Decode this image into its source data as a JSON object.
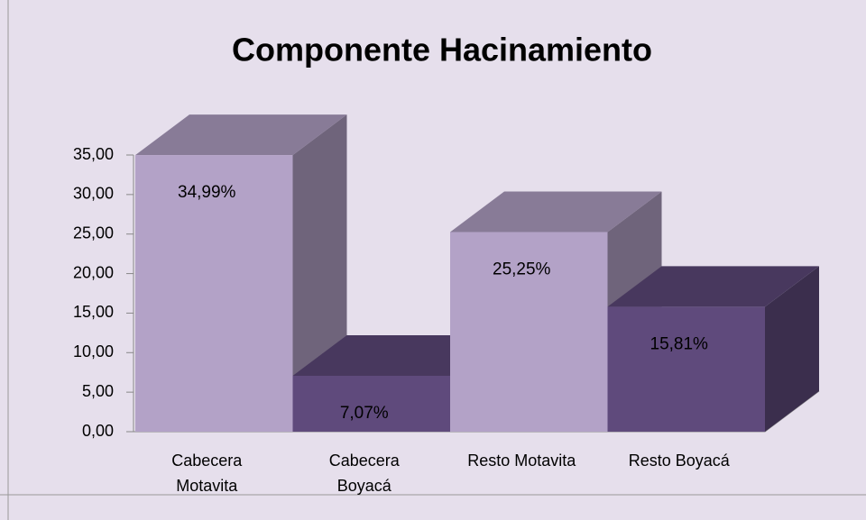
{
  "chart_data": {
    "type": "bar3d",
    "title": "Componente Hacinamiento",
    "categories": [
      "Cabecera Motavita",
      "Cabecera Boyacá",
      "Resto Motavita",
      "Resto Boyacá"
    ],
    "values": [
      34.99,
      7.07,
      25.25,
      15.81
    ],
    "value_labels": [
      "34,99%",
      "7,07%",
      "25,25%",
      "15,81%"
    ],
    "colors": [
      "#b3a2c7",
      "#5f4a7c",
      "#b3a2c7",
      "#5f4a7c"
    ],
    "ylim": [
      0,
      35
    ],
    "yticks": [
      {
        "value": 0,
        "label": "0,00"
      },
      {
        "value": 5,
        "label": "5,00"
      },
      {
        "value": 10,
        "label": "10,00"
      },
      {
        "value": 15,
        "label": "15,00"
      },
      {
        "value": 20,
        "label": "20,00"
      },
      {
        "value": 25,
        "label": "25,00"
      },
      {
        "value": 30,
        "label": "30,00"
      },
      {
        "value": 35,
        "label": "35,00"
      }
    ]
  }
}
